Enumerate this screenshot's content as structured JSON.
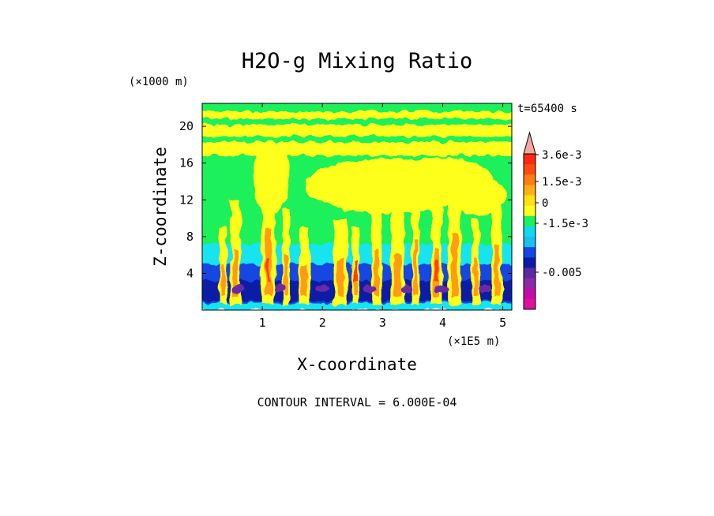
{
  "chart_data": {
    "type": "heatmap",
    "title": "H2O-g Mixing Ratio",
    "xlabel": "X-coordinate",
    "ylabel": "Z-coordinate",
    "x_unit": "(×1E5 m)",
    "y_unit": "(×1000 m)",
    "time_label": "t=65400 s",
    "contour_label": "CONTOUR INTERVAL = 6.000E-04",
    "xlim": [
      0,
      5.15
    ],
    "ylim": [
      0,
      22.5
    ],
    "x_ticks": [
      1,
      2,
      3,
      4,
      5
    ],
    "y_ticks": [
      4,
      8,
      12,
      16,
      20
    ],
    "colorbar": {
      "colors": [
        "#e0109c",
        "#c40aa8",
        "#8a2aa8",
        "#5b2aa0",
        "#0a1ca6",
        "#1446e2",
        "#18c0f0",
        "#12d8f0",
        "#1ef05a",
        "#ffff1e",
        "#ffe014",
        "#ffb012",
        "#ff7c14",
        "#ff4a10",
        "#ff2810",
        "#f0a8a0"
      ],
      "tick_labels": [
        "3.6e-3",
        "1.5e-3",
        "0",
        "-1.5e-3",
        "-0.005"
      ]
    }
  }
}
